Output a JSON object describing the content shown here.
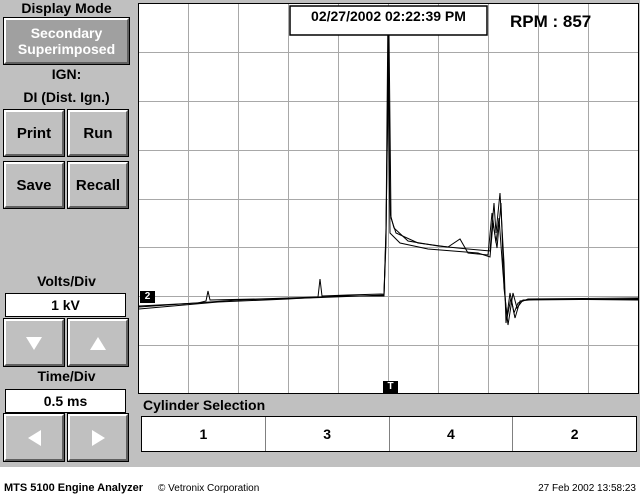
{
  "display_mode": {
    "label": "Display Mode",
    "button": [
      "Secondary",
      "Superimposed"
    ]
  },
  "ignition": {
    "label": "IGN:",
    "value": "DI (Dist. Ign.)"
  },
  "buttons": [
    "Print",
    "Run",
    "Save",
    "Recall"
  ],
  "volts_div": {
    "label": "Volts/Div",
    "value": "1 kV"
  },
  "time_div": {
    "label": "Time/Div",
    "value": "0.5 ms"
  },
  "timestamp": "02/27/2002 02:22:39 PM",
  "rpm": "RPM : 857",
  "markers": {
    "channel": "2",
    "trigger": "T"
  },
  "cylinder_selection": {
    "label": "Cylinder Selection",
    "cylinders": [
      "1",
      "3",
      "4",
      "2"
    ]
  },
  "footer": {
    "product": "MTS 5100 Engine Analyzer",
    "copyright": "© Vetronix Corporation",
    "datetime": "27 Feb 2002 13:58:23"
  }
}
